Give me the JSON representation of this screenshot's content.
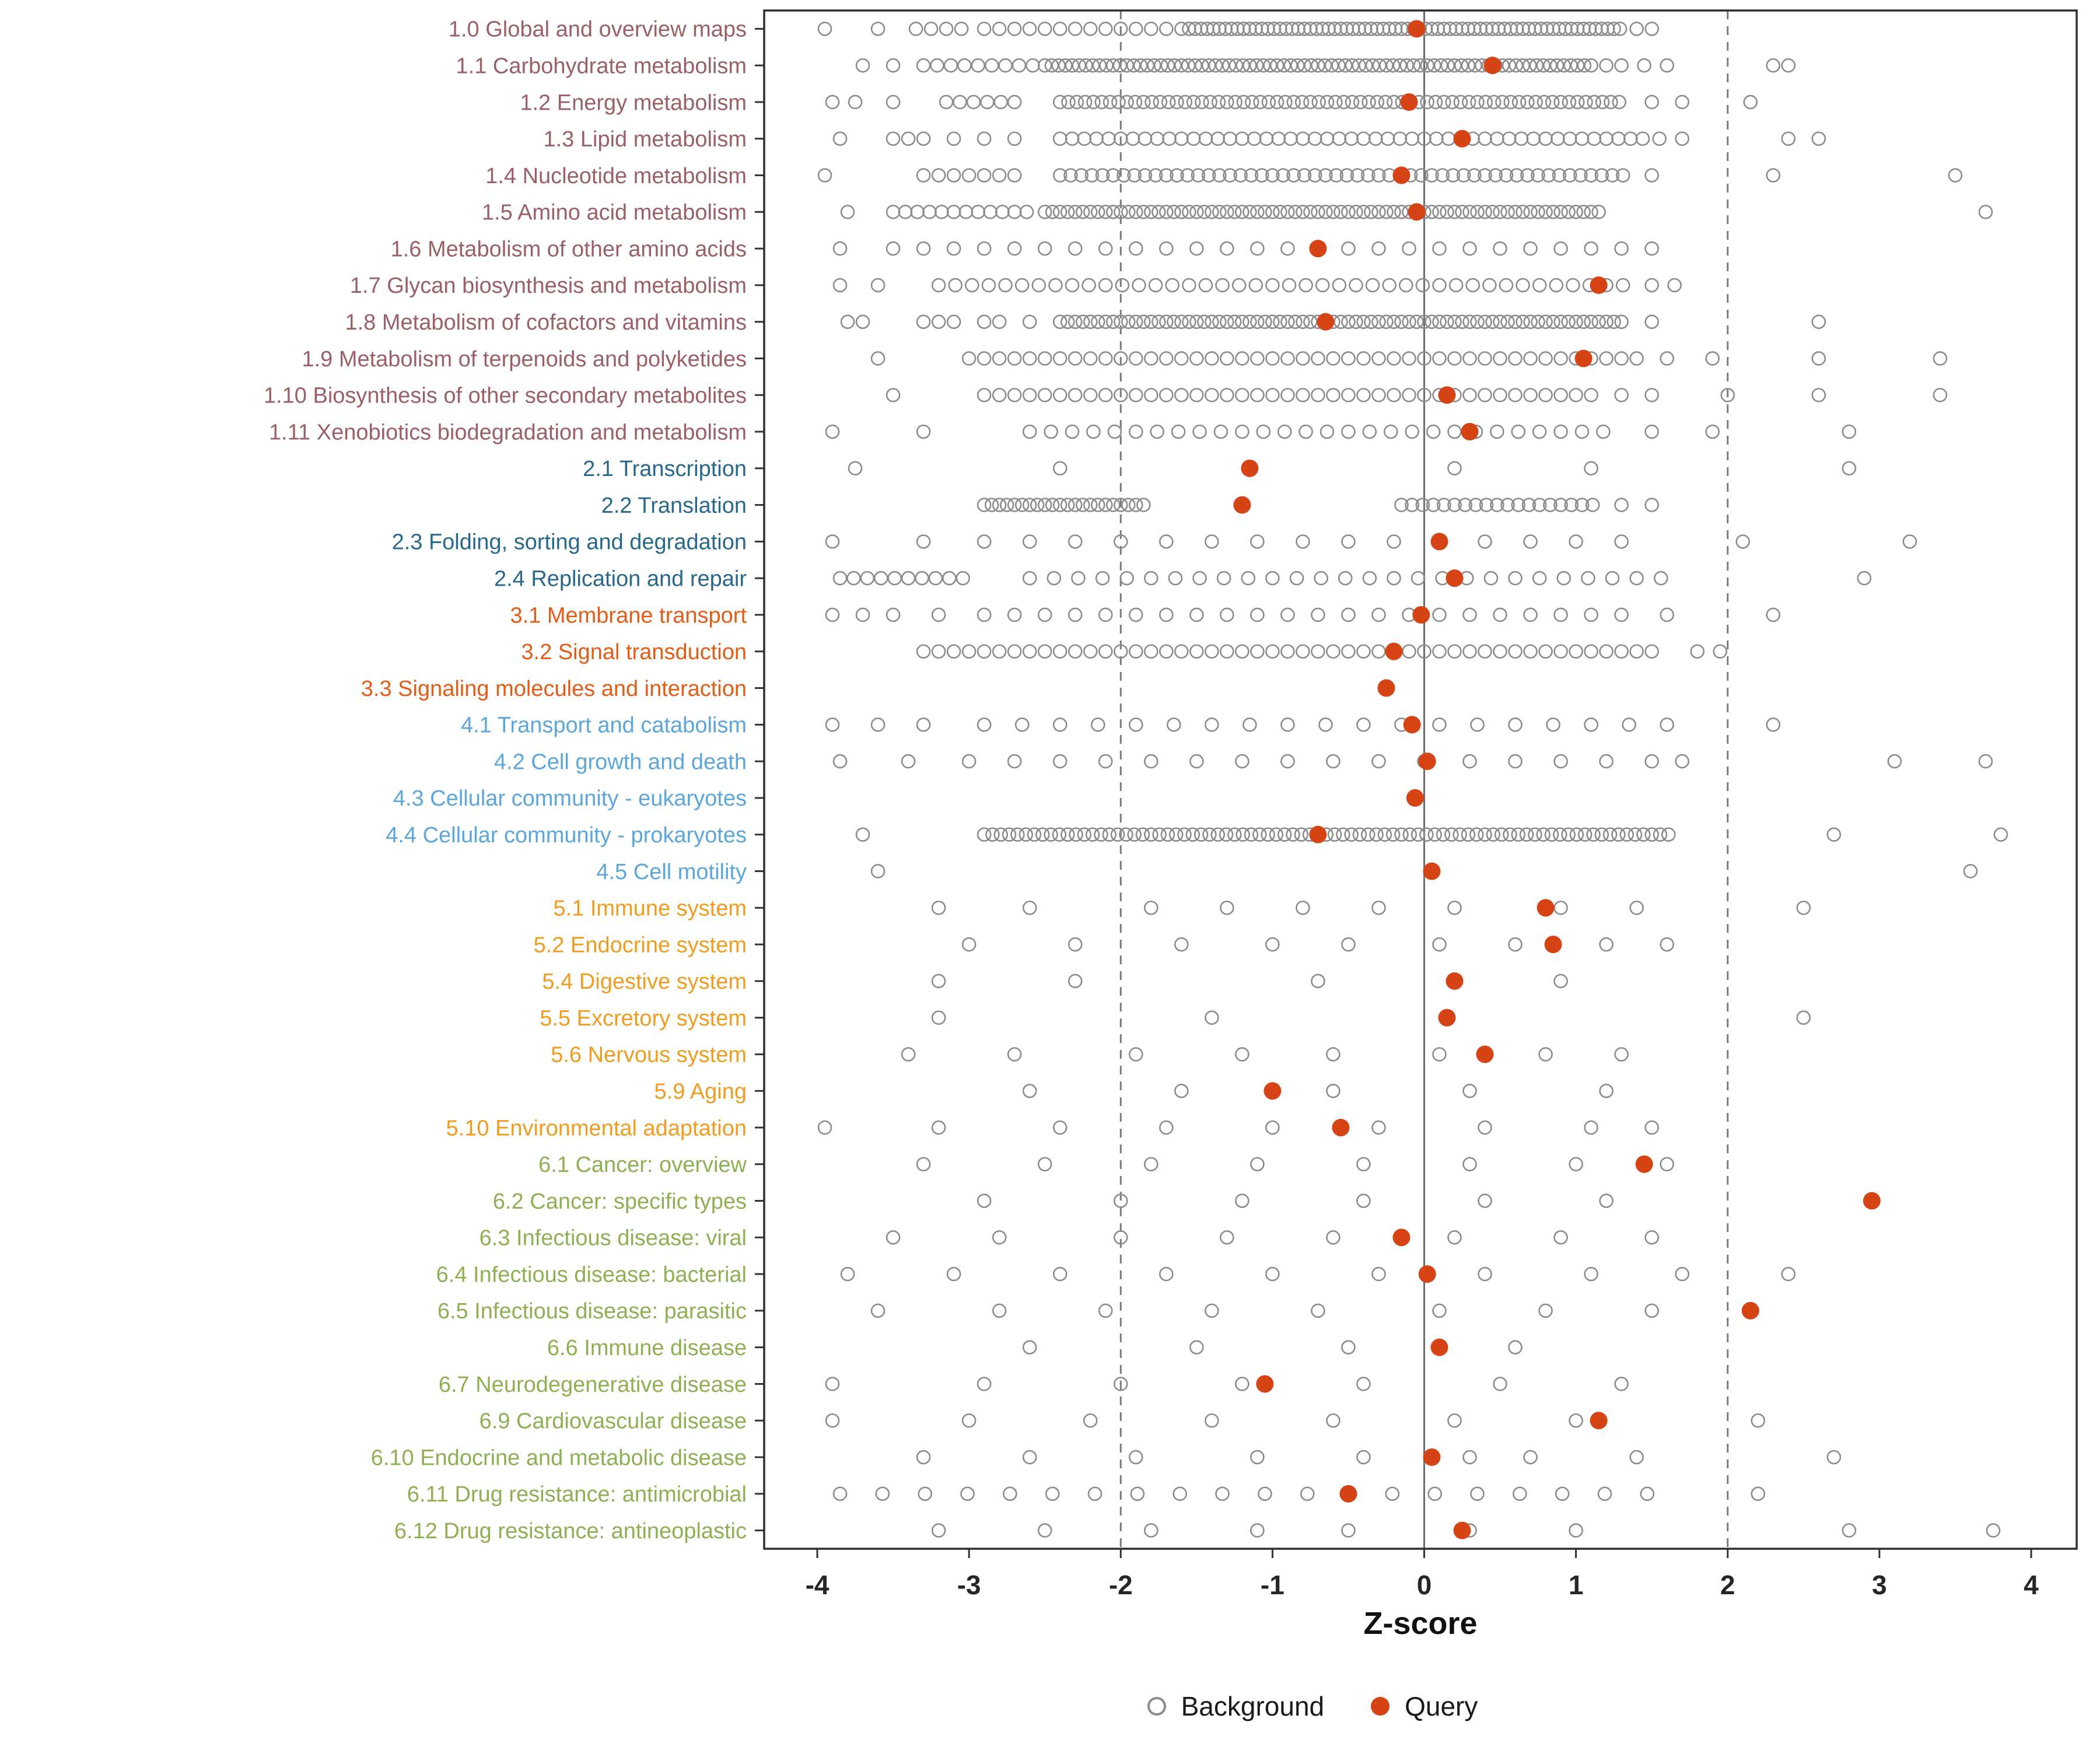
{
  "chart_data": {
    "type": "scatter",
    "title": "",
    "xlabel": "Z-score",
    "ylabel": "",
    "xlim": [
      -4.35,
      4.3
    ],
    "x_ticks": [
      -4,
      -3,
      -2,
      -1,
      0,
      1,
      2,
      3,
      4
    ],
    "vlines_dashed": [
      -2,
      2
    ],
    "zero_line": 0,
    "grid": "off",
    "legend_position": "bottom",
    "legend": {
      "background_label": "Background",
      "query_label": "Query"
    },
    "colors": {
      "background": "#8c8c8c",
      "query": "#d64315",
      "panel_border": "#2f2f2f",
      "axis_text": "#262626"
    },
    "group_colors": {
      "1": "#9b6066",
      "2": "#27688c",
      "3": "#e55c17",
      "4": "#5ba6dd",
      "5": "#f29c1f",
      "6": "#8fb052"
    },
    "rows": [
      {
        "label": "1.0 Global and overview maps",
        "group": "1",
        "query": -0.05,
        "bands": [
          [
            -2.9,
            -1.6,
            0.1
          ],
          [
            -1.55,
            1.3,
            0.04
          ]
        ],
        "pts": [
          -3.95,
          -3.6,
          -3.35,
          -3.25,
          -3.15,
          -3.05,
          1.4,
          1.5
        ]
      },
      {
        "label": "1.1 Carbohydrate metabolism",
        "group": "1",
        "query": 0.45,
        "bands": [
          [
            -3.3,
            -2.6,
            0.09
          ],
          [
            -2.5,
            1.1,
            0.045
          ]
        ],
        "pts": [
          -3.7,
          -3.5,
          1.2,
          1.3,
          1.45,
          1.6,
          2.3,
          2.4
        ]
      },
      {
        "label": "1.2 Energy metabolism",
        "group": "1",
        "query": -0.1,
        "bands": [
          [
            -3.15,
            -2.7,
            0.09
          ],
          [
            -2.4,
            1.3,
            0.055
          ]
        ],
        "pts": [
          -3.9,
          -3.75,
          -3.5,
          1.5,
          1.7,
          2.15
        ]
      },
      {
        "label": "1.3 Lipid metabolism",
        "group": "1",
        "query": 0.25,
        "bands": [
          [
            -2.4,
            1.4,
            0.08
          ]
        ],
        "pts": [
          -3.85,
          -3.5,
          -3.4,
          -3.3,
          -3.1,
          -2.9,
          -2.7,
          1.55,
          1.7,
          2.4,
          2.6
        ]
      },
      {
        "label": "1.4 Nucleotide metabolism",
        "group": "1",
        "query": -0.15,
        "bands": [
          [
            -3.3,
            -2.7,
            0.1
          ],
          [
            -2.4,
            1.3,
            0.07
          ]
        ],
        "pts": [
          -3.95,
          1.5,
          2.3,
          3.5
        ]
      },
      {
        "label": "1.5 Amino acid metabolism",
        "group": "1",
        "query": -0.05,
        "bands": [
          [
            -3.5,
            -2.6,
            0.08
          ],
          [
            -2.5,
            1.1,
            0.05
          ]
        ],
        "pts": [
          -3.8,
          1.15,
          3.7
        ]
      },
      {
        "label": "1.6 Metabolism of other amino acids",
        "group": "1",
        "query": -0.7,
        "bands": [
          [
            -3.5,
            1.5,
            0.2
          ]
        ],
        "pts": [
          -3.85
        ]
      },
      {
        "label": "1.7 Glycan biosynthesis and metabolism",
        "group": "1",
        "query": 1.15,
        "bands": [
          [
            -3.2,
            1.3,
            0.11
          ]
        ],
        "pts": [
          -3.85,
          -3.6,
          1.5,
          1.65
        ]
      },
      {
        "label": "1.8 Metabolism of cofactors and vitamins",
        "group": "1",
        "query": -0.65,
        "bands": [
          [
            -2.4,
            1.3,
            0.05
          ]
        ],
        "pts": [
          -3.8,
          -3.7,
          -3.3,
          -3.2,
          -3.1,
          -2.9,
          -2.8,
          -2.6,
          1.5,
          2.6
        ]
      },
      {
        "label": "1.9 Metabolism of terpenoids and polyketides",
        "group": "1",
        "query": 1.05,
        "bands": [
          [
            -3.0,
            1.4,
            0.1
          ]
        ],
        "pts": [
          -3.6,
          1.6,
          1.9,
          2.6,
          3.4
        ]
      },
      {
        "label": "1.10 Biosynthesis of other secondary metabolites",
        "group": "1",
        "query": 0.15,
        "bands": [
          [
            -2.9,
            1.1,
            0.1
          ]
        ],
        "pts": [
          -3.5,
          1.3,
          1.5,
          2.0,
          2.6,
          3.4
        ]
      },
      {
        "label": "1.11 Xenobiotics biodegradation and metabolism",
        "group": "1",
        "query": 0.3,
        "bands": [
          [
            -2.6,
            1.2,
            0.14
          ]
        ],
        "pts": [
          -3.9,
          -3.3,
          1.5,
          1.9,
          2.8
        ]
      },
      {
        "label": "2.1 Transcription",
        "group": "2",
        "query": -1.15,
        "pts": [
          -3.75,
          -2.4,
          0.2,
          1.1,
          2.8
        ]
      },
      {
        "label": "2.2 Translation",
        "group": "2",
        "query": -1.2,
        "bands": [
          [
            -2.9,
            -1.85,
            0.05
          ],
          [
            -0.15,
            1.1,
            0.07
          ]
        ],
        "pts": [
          1.3,
          1.5
        ]
      },
      {
        "label": "2.3 Folding, sorting and degradation",
        "group": "2",
        "query": 0.1,
        "bands": [
          [
            -2.9,
            1.4,
            0.3
          ]
        ],
        "pts": [
          -3.9,
          -3.3,
          2.1,
          3.2
        ]
      },
      {
        "label": "2.4 Replication and repair",
        "group": "2",
        "query": 0.2,
        "bands": [
          [
            -3.85,
            -3.0,
            0.09
          ],
          [
            -2.6,
            1.6,
            0.16
          ]
        ],
        "pts": [
          2.9
        ]
      },
      {
        "label": "3.1 Membrane transport",
        "group": "3",
        "query": -0.02,
        "bands": [
          [
            -2.9,
            1.3,
            0.2
          ]
        ],
        "pts": [
          -3.9,
          -3.7,
          -3.5,
          -3.2,
          1.6,
          2.3
        ]
      },
      {
        "label": "3.2 Signal transduction",
        "group": "3",
        "query": -0.2,
        "bands": [
          [
            -3.3,
            1.5,
            0.1
          ]
        ],
        "pts": [
          1.8,
          1.95
        ]
      },
      {
        "label": "3.3 Signaling molecules and interaction",
        "group": "3",
        "query": -0.25,
        "pts": []
      },
      {
        "label": "4.1 Transport and catabolism",
        "group": "4",
        "query": -0.08,
        "bands": [
          [
            -2.9,
            1.3,
            0.25
          ]
        ],
        "pts": [
          -3.9,
          -3.6,
          -3.3,
          1.6,
          2.3
        ]
      },
      {
        "label": "4.2 Cell growth and death",
        "group": "4",
        "query": 0.02,
        "bands": [
          [
            -2.7,
            1.5,
            0.3
          ]
        ],
        "pts": [
          -3.85,
          -3.4,
          -3.0,
          1.7,
          3.1,
          3.7
        ]
      },
      {
        "label": "4.3 Cellular community - eukaryotes",
        "group": "4",
        "query": -0.06,
        "pts": []
      },
      {
        "label": "4.4 Cellular community - prokaryotes",
        "group": "4",
        "query": -0.7,
        "bands": [
          [
            -2.9,
            1.6,
            0.055
          ]
        ],
        "pts": [
          -3.7,
          2.7,
          3.8
        ]
      },
      {
        "label": "4.5 Cell motility",
        "group": "4",
        "query": 0.05,
        "pts": [
          -3.6,
          3.6
        ]
      },
      {
        "label": "5.1 Immune system",
        "group": "5",
        "query": 0.8,
        "pts": [
          -3.2,
          -2.6,
          -1.8,
          -1.3,
          -0.8,
          -0.3,
          0.2,
          0.9,
          1.4,
          2.5
        ]
      },
      {
        "label": "5.2 Endocrine system",
        "group": "5",
        "query": 0.85,
        "pts": [
          -3.0,
          -2.3,
          -1.6,
          -1.0,
          -0.5,
          0.1,
          0.6,
          1.2,
          1.6
        ]
      },
      {
        "label": "5.4 Digestive system",
        "group": "5",
        "query": 0.2,
        "pts": [
          -3.2,
          -2.3,
          -0.7,
          0.9
        ]
      },
      {
        "label": "5.5 Excretory system",
        "group": "5",
        "query": 0.15,
        "pts": [
          -3.2,
          -1.4,
          2.5
        ]
      },
      {
        "label": "5.6 Nervous system",
        "group": "5",
        "query": 0.4,
        "pts": [
          -3.4,
          -2.7,
          -1.9,
          -1.2,
          -0.6,
          0.1,
          0.8,
          1.3
        ]
      },
      {
        "label": "5.9 Aging",
        "group": "5",
        "query": -1.0,
        "pts": [
          -2.6,
          -1.6,
          -0.6,
          0.3,
          1.2
        ]
      },
      {
        "label": "5.10 Environmental adaptation",
        "group": "5",
        "query": -0.55,
        "pts": [
          -3.95,
          -3.2,
          -2.4,
          -1.7,
          -1.0,
          -0.3,
          0.4,
          1.1,
          1.5
        ]
      },
      {
        "label": "6.1 Cancer: overview",
        "group": "6",
        "query": 1.45,
        "pts": [
          -3.3,
          -2.5,
          -1.8,
          -1.1,
          -0.4,
          0.3,
          1.0,
          1.6
        ]
      },
      {
        "label": "6.2 Cancer: specific types",
        "group": "6",
        "query": 2.95,
        "pts": [
          -2.9,
          -2.0,
          -1.2,
          -0.4,
          0.4,
          1.2
        ]
      },
      {
        "label": "6.3 Infectious disease: viral",
        "group": "6",
        "query": -0.15,
        "pts": [
          -3.5,
          -2.8,
          -2.0,
          -1.3,
          -0.6,
          0.2,
          0.9,
          1.5
        ]
      },
      {
        "label": "6.4 Infectious disease: bacterial",
        "group": "6",
        "query": 0.02,
        "pts": [
          -3.8,
          -3.1,
          -2.4,
          -1.7,
          -1.0,
          -0.3,
          0.4,
          1.1,
          1.7,
          2.4
        ]
      },
      {
        "label": "6.5 Infectious disease: parasitic",
        "group": "6",
        "query": 2.15,
        "pts": [
          -3.6,
          -2.8,
          -2.1,
          -1.4,
          -0.7,
          0.1,
          0.8,
          1.5
        ]
      },
      {
        "label": "6.6 Immune disease",
        "group": "6",
        "query": 0.1,
        "pts": [
          -2.6,
          -1.5,
          -0.5,
          0.6
        ]
      },
      {
        "label": "6.7 Neurodegenerative disease",
        "group": "6",
        "query": -1.05,
        "pts": [
          -3.9,
          -2.9,
          -2.0,
          -1.2,
          -0.4,
          0.5,
          1.3
        ]
      },
      {
        "label": "6.9 Cardiovascular disease",
        "group": "6",
        "query": 1.15,
        "pts": [
          -3.9,
          -3.0,
          -2.2,
          -1.4,
          -0.6,
          0.2,
          1.0,
          2.2
        ]
      },
      {
        "label": "6.10 Endocrine and metabolic disease",
        "group": "6",
        "query": 0.05,
        "pts": [
          -3.3,
          -2.6,
          -1.9,
          -1.1,
          -0.4,
          0.3,
          0.7,
          1.4,
          2.7
        ]
      },
      {
        "label": "6.11 Drug resistance: antimicrobial",
        "group": "6",
        "query": -0.5,
        "bands": [
          [
            -3.85,
            1.6,
            0.28
          ]
        ],
        "pts": [
          2.2
        ]
      },
      {
        "label": "6.12 Drug resistance: antineoplastic",
        "group": "6",
        "query": 0.25,
        "pts": [
          -3.2,
          -2.5,
          -1.8,
          -1.1,
          -0.5,
          0.3,
          1.0,
          2.8,
          3.75
        ]
      }
    ]
  }
}
